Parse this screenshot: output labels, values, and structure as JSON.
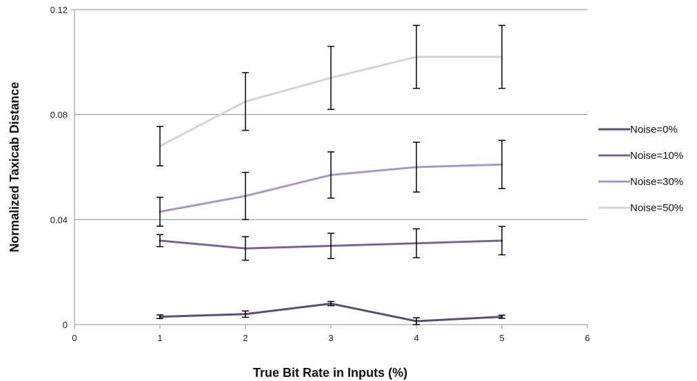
{
  "chart_data": {
    "type": "line",
    "title": "",
    "xlabel": "True Bit Rate in Inputs (%)",
    "ylabel": "Normalized Taxicab Distance",
    "xlim": [
      0,
      6
    ],
    "ylim": [
      0,
      0.12
    ],
    "x_ticks": [
      0,
      1,
      2,
      3,
      4,
      5,
      6
    ],
    "x_tick_labels": [
      "0",
      "1",
      "2",
      "3",
      "4",
      "5",
      "6"
    ],
    "y_ticks": [
      0,
      0.04,
      0.08,
      0.12
    ],
    "y_tick_labels": [
      "0",
      "0.04",
      "0.08",
      "0.12"
    ],
    "grid": "horizontal",
    "legend_position": "right",
    "x": [
      1,
      2,
      3,
      4,
      5
    ],
    "series": [
      {
        "name": "Noise=0%",
        "color": "#5e4a78",
        "values": [
          0.003,
          0.004,
          0.008,
          0.0013,
          0.003
        ],
        "error": [
          0.0007,
          0.0012,
          0.0008,
          0.0013,
          0.0006
        ]
      },
      {
        "name": "Noise=10%",
        "color": "#7a6396",
        "values": [
          0.032,
          0.029,
          0.03,
          0.031,
          0.032
        ],
        "error": [
          0.0023,
          0.0045,
          0.0048,
          0.0055,
          0.0054
        ]
      },
      {
        "name": "Noise=30%",
        "color": "#a997c6",
        "values": [
          0.043,
          0.049,
          0.057,
          0.06,
          0.061
        ],
        "error": [
          0.0055,
          0.009,
          0.0088,
          0.0095,
          0.0092
        ]
      },
      {
        "name": "Noise=50%",
        "color": "#d4d0e2",
        "values": [
          0.068,
          0.085,
          0.094,
          0.102,
          0.102
        ],
        "error": [
          0.0075,
          0.011,
          0.012,
          0.012,
          0.012
        ]
      }
    ]
  }
}
